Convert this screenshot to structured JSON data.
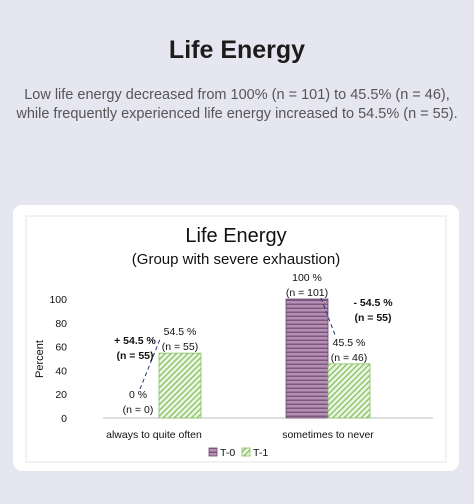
{
  "header": {
    "title": "Life Energy",
    "subtitle_line1": "Low life energy decreased from 100% (n = 101) to 45.5% (n = 46),",
    "subtitle_line2": "while frequently experienced life energy increased to 54.5% (n = 55)."
  },
  "colors": {
    "t0": "#b58fb5",
    "t0_stripe": "#6e4a6e",
    "t1": "#c8e6b0",
    "t1_stripe": "#86bf63"
  },
  "chart_data": {
    "type": "bar",
    "title": "Life Energy",
    "subtitle": "(Group with severe exhaustion)",
    "xlabel": "",
    "ylabel": "Percent",
    "ylim": [
      0,
      100
    ],
    "yticks": [
      0,
      20,
      40,
      60,
      80,
      100
    ],
    "categories": [
      "always to quite often",
      "sometimes to never"
    ],
    "series": [
      {
        "name": "T-0",
        "values": [
          0,
          100
        ],
        "labels": [
          "0 %",
          "100 %"
        ],
        "n_labels": [
          "(n = 0)",
          "(n = 101)"
        ]
      },
      {
        "name": "T-1",
        "values": [
          54.5,
          45.5
        ],
        "labels": [
          "54.5 %",
          "45.5 %"
        ],
        "n_labels": [
          "(n = 55)",
          "(n = 46)"
        ]
      }
    ],
    "annotations": [
      {
        "category": "always to quite often",
        "line1": "+ 54.5 %",
        "line2": "(n = 55)"
      },
      {
        "category": "sometimes to never",
        "line1": "- 54.5 %",
        "line2": "(n = 55)"
      }
    ],
    "legend": "bottom",
    "grid": false
  }
}
